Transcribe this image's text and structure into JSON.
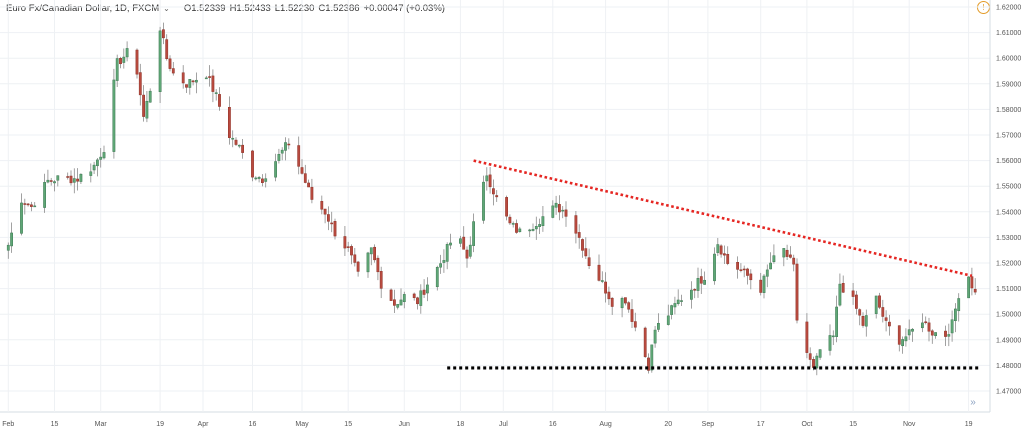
{
  "legend": {
    "symbol": "Euro Fx/Canadian Dollar, 1D, FXCM",
    "open": "O1.52339",
    "high": "H1.52433",
    "low": "L1.52230",
    "close": "C1.52386",
    "change": "+0.00047 (+0.03%)"
  },
  "icons": {
    "alert": "clock-alert-icon",
    "goto_realtime": "double-chevron-right-icon",
    "legend_toggle": "chevron-down-icon"
  },
  "colors": {
    "up": "#26a69a",
    "up_fill": "#5fa776",
    "down": "#b94a3f",
    "resistance": "#e52622",
    "support": "#000000",
    "grid": "#eef1f4"
  },
  "chart_data": {
    "type": "candlestick",
    "price_axis": {
      "min": 1.47,
      "max": 1.62,
      "step": 0.01,
      "labels": [
        "1.62000",
        "1.61000",
        "1.60000",
        "1.59000",
        "1.58000",
        "1.57000",
        "1.56000",
        "1.55000",
        "1.54000",
        "1.53000",
        "1.52000",
        "1.51000",
        "1.50000",
        "1.49000",
        "1.48000",
        "1.47000"
      ]
    },
    "time_axis": {
      "labels": [
        "Feb",
        "15",
        "Mar",
        "19",
        "Apr",
        "16",
        "May",
        "15",
        "Jun",
        "18",
        "Jul",
        "16",
        "Aug",
        "20",
        "Sep",
        "17",
        "Oct",
        "15",
        "Nov",
        "19"
      ]
    },
    "close_path": [
      [
        "Feb-01",
        1.527
      ],
      [
        "Feb-05",
        1.545
      ],
      [
        "Feb-08",
        1.542
      ],
      [
        "Feb-13",
        1.552
      ],
      [
        "Feb-16",
        1.553
      ],
      [
        "Feb-22",
        1.553
      ],
      [
        "Feb-27",
        1.558
      ],
      [
        "Mar-02",
        1.565
      ],
      [
        "Mar-06",
        1.598
      ],
      [
        "Mar-09",
        1.602
      ],
      [
        "Mar-12",
        1.595
      ],
      [
        "Mar-14",
        1.577
      ],
      [
        "Mar-16",
        1.588
      ],
      [
        "Mar-19",
        1.612
      ],
      [
        "Mar-21",
        1.6
      ],
      [
        "Mar-23",
        1.594
      ],
      [
        "Mar-27",
        1.59
      ],
      [
        "Apr-02",
        1.594
      ],
      [
        "Apr-05",
        1.585
      ],
      [
        "Apr-09",
        1.57
      ],
      [
        "Apr-12",
        1.565
      ],
      [
        "Apr-16",
        1.555
      ],
      [
        "Apr-19",
        1.553
      ],
      [
        "Apr-23",
        1.56
      ],
      [
        "Apr-27",
        1.567
      ],
      [
        "May-01",
        1.555
      ],
      [
        "May-04",
        1.545
      ],
      [
        "May-08",
        1.54
      ],
      [
        "May-11",
        1.532
      ],
      [
        "May-15",
        1.525
      ],
      [
        "May-18",
        1.515
      ],
      [
        "May-22",
        1.525
      ],
      [
        "May-25",
        1.512
      ],
      [
        "May-29",
        1.504
      ],
      [
        "Jun-01",
        1.507
      ],
      [
        "Jun-05",
        1.505
      ],
      [
        "Jun-08",
        1.512
      ],
      [
        "Jun-12",
        1.52
      ],
      [
        "Jun-15",
        1.528
      ],
      [
        "Jun-18",
        1.528
      ],
      [
        "Jun-20",
        1.522
      ],
      [
        "Jun-22",
        1.535
      ],
      [
        "Jun-26",
        1.555
      ],
      [
        "Jun-29",
        1.545
      ],
      [
        "Jul-03",
        1.535
      ],
      [
        "Jul-06",
        1.532
      ],
      [
        "Jul-10",
        1.535
      ],
      [
        "Jul-13",
        1.538
      ],
      [
        "Jul-17",
        1.542
      ],
      [
        "Jul-20",
        1.54
      ],
      [
        "Jul-24",
        1.53
      ],
      [
        "Jul-27",
        1.52
      ],
      [
        "Jul-31",
        1.512
      ],
      [
        "Aug-03",
        1.505
      ],
      [
        "Aug-07",
        1.506
      ],
      [
        "Aug-10",
        1.495
      ],
      [
        "Aug-14",
        1.48
      ],
      [
        "Aug-16",
        1.494
      ],
      [
        "Aug-20",
        1.5
      ],
      [
        "Aug-23",
        1.505
      ],
      [
        "Aug-27",
        1.51
      ],
      [
        "Aug-31",
        1.515
      ],
      [
        "Sep-04",
        1.528
      ],
      [
        "Sep-07",
        1.52
      ],
      [
        "Sep-10",
        1.518
      ],
      [
        "Sep-13",
        1.515
      ],
      [
        "Sep-17",
        1.51
      ],
      [
        "Sep-20",
        1.52
      ],
      [
        "Sep-24",
        1.525
      ],
      [
        "Sep-27",
        1.518
      ],
      [
        "Sep-28",
        1.498
      ],
      [
        "Oct-01",
        1.485
      ],
      [
        "Oct-03",
        1.478
      ],
      [
        "Oct-05",
        1.486
      ],
      [
        "Oct-09",
        1.491
      ],
      [
        "Oct-11",
        1.512
      ],
      [
        "Oct-15",
        1.505
      ],
      [
        "Oct-18",
        1.496
      ],
      [
        "Oct-22",
        1.506
      ],
      [
        "Oct-25",
        1.496
      ],
      [
        "Oct-29",
        1.49
      ],
      [
        "Nov-01",
        1.492
      ],
      [
        "Nov-05",
        1.498
      ],
      [
        "Nov-08",
        1.493
      ],
      [
        "Nov-12",
        1.492
      ],
      [
        "Nov-14",
        1.496
      ],
      [
        "Nov-16",
        1.508
      ],
      [
        "Nov-19",
        1.515
      ],
      [
        "Nov-21",
        1.508
      ]
    ],
    "trendlines": [
      {
        "kind": "resistance",
        "style": "dotted",
        "from": [
          "Jun-22",
          1.56
        ],
        "to": [
          "Nov-20",
          1.515
        ]
      },
      {
        "kind": "support",
        "style": "dotted",
        "from": [
          "Jun-14",
          1.479
        ],
        "to": [
          "Nov-22",
          1.479
        ]
      }
    ],
    "grid": true
  }
}
